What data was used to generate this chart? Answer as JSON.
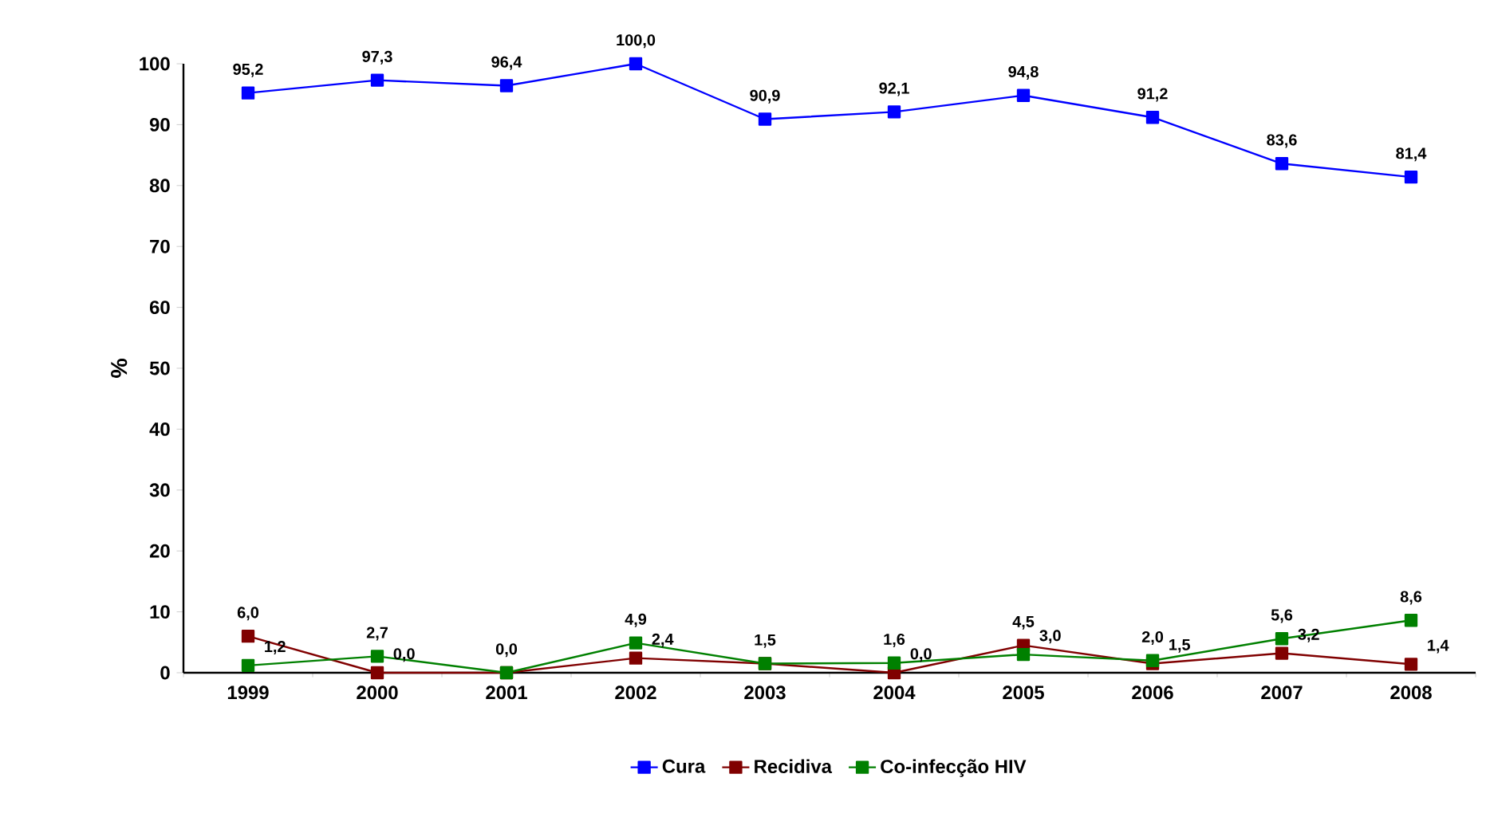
{
  "chart_data": {
    "type": "line",
    "ylabel": "%",
    "categories": [
      "1999",
      "2000",
      "2001",
      "2002",
      "2003",
      "2004",
      "2005",
      "2006",
      "2007",
      "2008"
    ],
    "series": [
      {
        "name": "Cura",
        "color": "#0000ff",
        "values": [
          95.2,
          97.3,
          96.4,
          100.0,
          90.9,
          92.1,
          94.8,
          91.2,
          83.6,
          81.4
        ],
        "value_labels": [
          "95,2",
          "97,3",
          "96,4",
          "100,0",
          "90,9",
          "92,1",
          "94,8",
          "91,2",
          "83,6",
          "81,4"
        ]
      },
      {
        "name": "Recidiva",
        "color": "#800000",
        "values": [
          6.0,
          0.0,
          0.0,
          2.4,
          1.5,
          0.0,
          4.5,
          1.5,
          3.2,
          1.4
        ],
        "value_labels": [
          "6,0",
          "0,0",
          "0,0",
          "2,4",
          "1,5",
          "0,0",
          "4,5",
          "1,5",
          "3,2",
          "1,4"
        ]
      },
      {
        "name": "Co-infecção HIV",
        "color": "#008000",
        "values": [
          1.2,
          2.7,
          0.0,
          4.9,
          1.5,
          1.6,
          3.0,
          2.0,
          5.6,
          8.6
        ],
        "value_labels": [
          "1,2",
          "2,7",
          null,
          "4,9",
          null,
          "1,6",
          "3,0",
          "2,0",
          "5,6",
          "8,6"
        ]
      }
    ],
    "ylim": [
      0,
      100
    ],
    "yticks": [
      0,
      10,
      20,
      30,
      40,
      50,
      60,
      70,
      80,
      90,
      100
    ],
    "grid": false,
    "legend": "bottom",
    "marker": "square",
    "line_style": "solid"
  }
}
